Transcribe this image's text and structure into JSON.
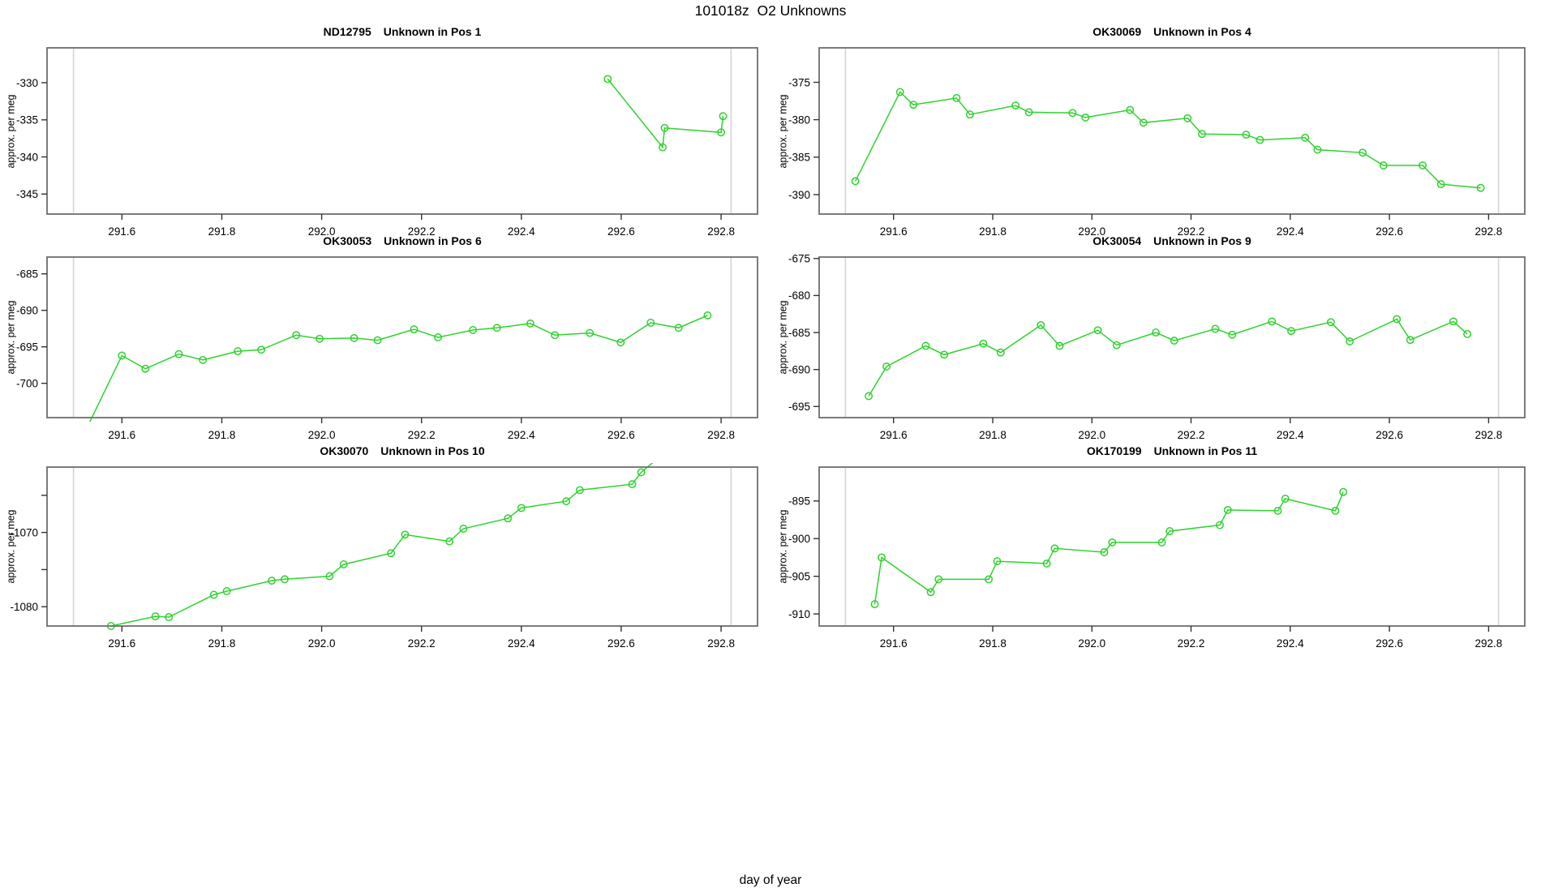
{
  "figure": {
    "title": "101018z  O2 Unknowns",
    "xlabel": "day of year"
  },
  "colors": {
    "series_green": "#2ed32e",
    "abline_gray": "#d4d4d4",
    "box_gray": "#6e6e6e",
    "tick_color": "#333333",
    "text_color": "#000000"
  },
  "axes": {
    "xlim": [
      291.45,
      292.873
    ],
    "xticks": [
      291.6,
      291.8,
      292.0,
      292.2,
      292.4,
      292.6,
      292.8
    ],
    "xtick_labels": [
      "291.6",
      "291.8",
      "292.0",
      "292.2",
      "292.4",
      "292.6",
      "292.8"
    ],
    "ablines_x": [
      291.503,
      292.82
    ],
    "grid": false,
    "legend": "none"
  },
  "chart_data": [
    {
      "type": "line",
      "id": "ND12795",
      "desc": "Unknown in Pos 1",
      "ylabel": "approx. per meg",
      "ylim": [
        -347.7,
        -325.3
      ],
      "ytick_values": [
        -330,
        -335,
        -340,
        -345
      ],
      "ytick_labels": [
        "-330",
        "-335",
        "-340",
        "-345"
      ],
      "x": [
        292.573,
        292.683,
        292.687,
        292.8,
        292.804
      ],
      "y": [
        -329.5,
        -338.7,
        -336.1,
        -336.7,
        -334.5
      ]
    },
    {
      "type": "line",
      "id": "OK30069",
      "desc": "Unknown in Pos 4",
      "ylabel": "approx. per meg",
      "ylim": [
        -392.6,
        -370.4
      ],
      "ytick_values": [
        -375,
        -380,
        -385,
        -390
      ],
      "ytick_labels": [
        "-375",
        "-380",
        "-385",
        "-390"
      ],
      "x": [
        291.523,
        291.613,
        291.64,
        291.727,
        291.754,
        291.846,
        291.873,
        291.961,
        291.987,
        292.077,
        292.104,
        292.193,
        292.222,
        292.311,
        292.339,
        292.43,
        292.455,
        292.546,
        292.588,
        292.667,
        292.704,
        292.784
      ],
      "y": [
        -388.2,
        -376.3,
        -378.0,
        -377.1,
        -379.3,
        -378.1,
        -379.0,
        -379.1,
        -379.7,
        -378.7,
        -380.4,
        -379.8,
        -381.9,
        -382.0,
        -382.7,
        -382.4,
        -384.0,
        -384.4,
        -386.1,
        -386.1,
        -388.6,
        -389.1
      ]
    },
    {
      "type": "line",
      "id": "OK30053",
      "desc": "Unknown in Pos 6",
      "ylabel": "approx. per meg",
      "ylim": [
        -704.7,
        -682.7
      ],
      "ytick_values": [
        -685,
        -690,
        -695,
        -700
      ],
      "ytick_labels": [
        "-685",
        "-690",
        "-695",
        "-700"
      ],
      "x": [
        291.52,
        291.6,
        291.647,
        291.714,
        291.762,
        291.832,
        291.879,
        291.949,
        291.996,
        292.065,
        292.112,
        292.185,
        292.233,
        292.303,
        292.351,
        292.418,
        292.467,
        292.537,
        292.599,
        292.659,
        292.715,
        292.773
      ],
      "y": [
        -707.5,
        -696.2,
        -698.0,
        -696.0,
        -696.8,
        -695.6,
        -695.4,
        -693.4,
        -693.9,
        -693.8,
        -694.1,
        -692.6,
        -693.7,
        -692.7,
        -692.4,
        -691.8,
        -693.4,
        -693.1,
        -694.4,
        -691.7,
        -692.4,
        -690.7
      ]
    },
    {
      "type": "line",
      "id": "OK30054",
      "desc": "Unknown in Pos 9",
      "ylabel": "approx. per meg",
      "ylim": [
        -696.5,
        -674.8
      ],
      "ytick_values": [
        -675,
        -680,
        -685,
        -690,
        -695
      ],
      "ytick_labels": [
        "-675",
        "-680",
        "-685",
        "-690",
        "-695"
      ],
      "x": [
        291.55,
        291.586,
        291.665,
        291.702,
        291.781,
        291.816,
        291.897,
        291.935,
        292.012,
        292.05,
        292.129,
        292.166,
        292.249,
        292.283,
        292.363,
        292.402,
        292.482,
        292.52,
        292.615,
        292.642,
        292.729,
        292.757
      ],
      "y": [
        -693.6,
        -689.6,
        -686.8,
        -688.0,
        -686.5,
        -687.7,
        -684.0,
        -686.8,
        -684.7,
        -686.7,
        -685.0,
        -686.1,
        -684.5,
        -685.3,
        -683.5,
        -684.8,
        -683.6,
        -686.2,
        -683.2,
        -686.0,
        -683.5,
        -685.2
      ]
    },
    {
      "type": "line",
      "id": "OK30070",
      "desc": "Unknown in Pos 10",
      "ylabel": "approx. per meg",
      "ylim": [
        -1082.6,
        -1061.2
      ],
      "ytick_values": [
        -1065,
        -1070,
        -1075,
        -1080
      ],
      "ytick_labels": [
        "",
        "-1070",
        "",
        "-1080"
      ],
      "x": [
        291.578,
        291.667,
        291.694,
        291.784,
        291.81,
        291.9,
        291.926,
        292.016,
        292.044,
        292.139,
        292.167,
        292.256,
        292.284,
        292.373,
        292.4,
        292.49,
        292.517,
        292.622,
        292.64,
        292.7
      ],
      "y": [
        -1082.6,
        -1081.3,
        -1081.4,
        -1078.4,
        -1077.9,
        -1076.5,
        -1076.3,
        -1075.9,
        -1074.3,
        -1072.8,
        -1070.3,
        -1071.2,
        -1069.5,
        -1068.1,
        -1066.7,
        -1065.8,
        -1064.3,
        -1063.5,
        -1061.9,
        -1058.5
      ]
    },
    {
      "type": "line",
      "id": "OK170199",
      "desc": "Unknown in Pos 11",
      "ylabel": "approx. per meg",
      "ylim": [
        -911.6,
        -890.5
      ],
      "ytick_values": [
        -895,
        -900,
        -905,
        -910
      ],
      "ytick_labels": [
        "-895",
        "-900",
        "-905",
        "-910"
      ],
      "x": [
        291.562,
        291.576,
        291.675,
        291.691,
        291.792,
        291.809,
        291.909,
        291.925,
        292.025,
        292.041,
        292.141,
        292.157,
        292.258,
        292.274,
        292.375,
        292.39,
        292.491,
        292.507
      ],
      "y": [
        -908.7,
        -902.5,
        -907.1,
        -905.4,
        -905.4,
        -903.0,
        -903.3,
        -901.3,
        -901.8,
        -900.5,
        -900.5,
        -899.0,
        -898.2,
        -896.2,
        -896.3,
        -894.7,
        -896.3,
        -893.8
      ]
    }
  ]
}
